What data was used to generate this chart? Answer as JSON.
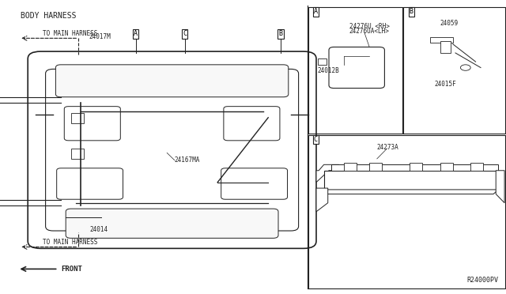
{
  "bg_color": "#f0f0f0",
  "line_color": "#222222",
  "title": "BODY HARNESS",
  "diagram_ref": "R24000PV",
  "left_labels": {
    "body_harness": "BODY HARNESS",
    "to_main_harness_top": "TO MAIN HARNESS",
    "to_main_harness_bottom": "TO MAIN HARNESS",
    "front": "FRONT",
    "part_24017M": "24017M",
    "part_24014": "24014",
    "part_24167MA": "24167MA"
  },
  "callout_boxes": {
    "A": [
      0.345,
      0.885
    ],
    "B": [
      0.57,
      0.885
    ],
    "C": [
      0.455,
      0.885
    ]
  },
  "right_panel_boxes": {
    "A": [
      0.615,
      0.545,
      0.185,
      0.43
    ],
    "B": [
      0.8,
      0.545,
      0.196,
      0.43
    ],
    "C": [
      0.615,
      0.02,
      0.381,
      0.5
    ]
  },
  "right_labels": {
    "part_A_1": "24276U <RH>",
    "part_A_2": "24276UA<LH>",
    "part_A_3": "24012B",
    "part_B_1": "24059",
    "part_B_2": "24015F",
    "part_C_1": "24273A"
  }
}
